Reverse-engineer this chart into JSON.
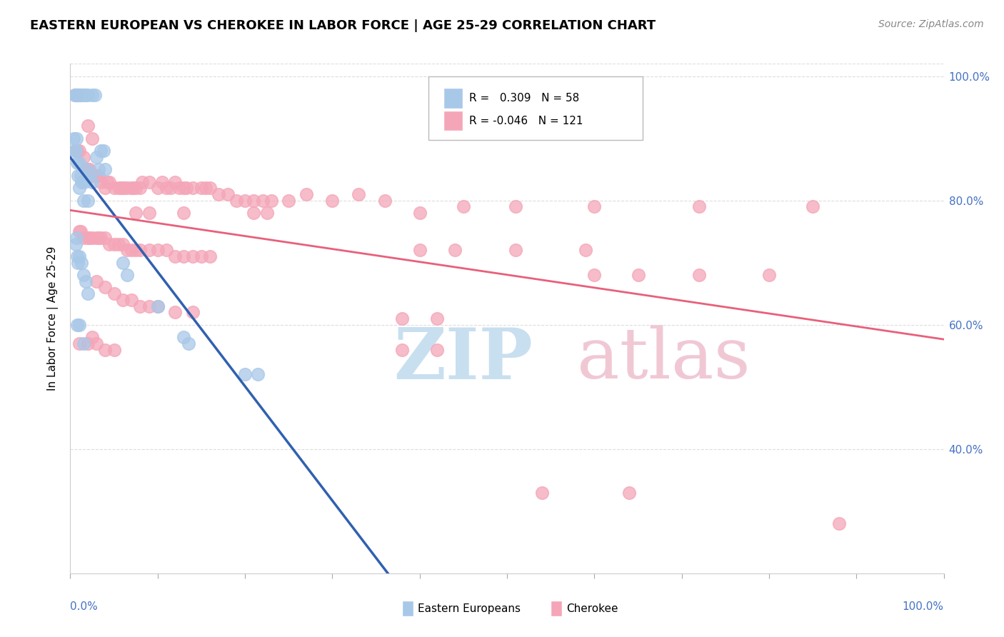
{
  "title": "EASTERN EUROPEAN VS CHEROKEE IN LABOR FORCE | AGE 25-29 CORRELATION CHART",
  "source": "Source: ZipAtlas.com",
  "ylabel": "In Labor Force | Age 25-29",
  "legend_ee": "Eastern Europeans",
  "legend_ch": "Cherokee",
  "r_ee": 0.309,
  "n_ee": 58,
  "r_ch": -0.046,
  "n_ch": 121,
  "ee_color": "#a8c8e8",
  "ch_color": "#f4a6b8",
  "ee_line_color": "#3060b0",
  "ch_line_color": "#e8607a",
  "ee_scatter": [
    [
      0.005,
      0.97
    ],
    [
      0.005,
      0.97
    ],
    [
      0.007,
      0.97
    ],
    [
      0.008,
      0.97
    ],
    [
      0.009,
      0.97
    ],
    [
      0.01,
      0.97
    ],
    [
      0.01,
      0.97
    ],
    [
      0.011,
      0.97
    ],
    [
      0.012,
      0.97
    ],
    [
      0.013,
      0.97
    ],
    [
      0.015,
      0.97
    ],
    [
      0.017,
      0.97
    ],
    [
      0.018,
      0.97
    ],
    [
      0.02,
      0.97
    ],
    [
      0.025,
      0.97
    ],
    [
      0.028,
      0.97
    ],
    [
      0.004,
      0.9
    ],
    [
      0.005,
      0.88
    ],
    [
      0.006,
      0.88
    ],
    [
      0.007,
      0.9
    ],
    [
      0.008,
      0.86
    ],
    [
      0.009,
      0.84
    ],
    [
      0.01,
      0.86
    ],
    [
      0.01,
      0.82
    ],
    [
      0.012,
      0.84
    ],
    [
      0.013,
      0.83
    ],
    [
      0.015,
      0.8
    ],
    [
      0.016,
      0.83
    ],
    [
      0.018,
      0.85
    ],
    [
      0.02,
      0.8
    ],
    [
      0.022,
      0.84
    ],
    [
      0.025,
      0.83
    ],
    [
      0.03,
      0.87
    ],
    [
      0.032,
      0.85
    ],
    [
      0.035,
      0.88
    ],
    [
      0.038,
      0.88
    ],
    [
      0.04,
      0.85
    ],
    [
      0.006,
      0.73
    ],
    [
      0.007,
      0.74
    ],
    [
      0.008,
      0.71
    ],
    [
      0.009,
      0.7
    ],
    [
      0.01,
      0.71
    ],
    [
      0.013,
      0.7
    ],
    [
      0.015,
      0.68
    ],
    [
      0.018,
      0.67
    ],
    [
      0.02,
      0.65
    ],
    [
      0.008,
      0.6
    ],
    [
      0.01,
      0.6
    ],
    [
      0.015,
      0.57
    ],
    [
      0.06,
      0.7
    ],
    [
      0.065,
      0.68
    ],
    [
      0.1,
      0.63
    ],
    [
      0.13,
      0.58
    ],
    [
      0.135,
      0.57
    ],
    [
      0.2,
      0.52
    ],
    [
      0.215,
      0.52
    ]
  ],
  "ch_scatter": [
    [
      0.005,
      0.97
    ],
    [
      0.008,
      0.97
    ],
    [
      0.02,
      0.92
    ],
    [
      0.025,
      0.9
    ],
    [
      0.005,
      0.88
    ],
    [
      0.008,
      0.88
    ],
    [
      0.01,
      0.88
    ],
    [
      0.015,
      0.87
    ],
    [
      0.018,
      0.85
    ],
    [
      0.02,
      0.85
    ],
    [
      0.022,
      0.85
    ],
    [
      0.025,
      0.84
    ],
    [
      0.028,
      0.84
    ],
    [
      0.03,
      0.84
    ],
    [
      0.032,
      0.84
    ],
    [
      0.035,
      0.83
    ],
    [
      0.04,
      0.82
    ],
    [
      0.042,
      0.83
    ],
    [
      0.045,
      0.83
    ],
    [
      0.05,
      0.82
    ],
    [
      0.055,
      0.82
    ],
    [
      0.058,
      0.82
    ],
    [
      0.06,
      0.82
    ],
    [
      0.062,
      0.82
    ],
    [
      0.065,
      0.82
    ],
    [
      0.07,
      0.82
    ],
    [
      0.072,
      0.82
    ],
    [
      0.075,
      0.82
    ],
    [
      0.08,
      0.82
    ],
    [
      0.082,
      0.83
    ],
    [
      0.09,
      0.83
    ],
    [
      0.1,
      0.82
    ],
    [
      0.105,
      0.83
    ],
    [
      0.11,
      0.82
    ],
    [
      0.115,
      0.82
    ],
    [
      0.12,
      0.83
    ],
    [
      0.125,
      0.82
    ],
    [
      0.13,
      0.82
    ],
    [
      0.133,
      0.82
    ],
    [
      0.14,
      0.82
    ],
    [
      0.15,
      0.82
    ],
    [
      0.155,
      0.82
    ],
    [
      0.16,
      0.82
    ],
    [
      0.17,
      0.81
    ],
    [
      0.18,
      0.81
    ],
    [
      0.19,
      0.8
    ],
    [
      0.2,
      0.8
    ],
    [
      0.21,
      0.8
    ],
    [
      0.22,
      0.8
    ],
    [
      0.23,
      0.8
    ],
    [
      0.25,
      0.8
    ],
    [
      0.27,
      0.81
    ],
    [
      0.3,
      0.8
    ],
    [
      0.33,
      0.81
    ],
    [
      0.36,
      0.8
    ],
    [
      0.01,
      0.75
    ],
    [
      0.012,
      0.75
    ],
    [
      0.015,
      0.74
    ],
    [
      0.02,
      0.74
    ],
    [
      0.022,
      0.74
    ],
    [
      0.025,
      0.74
    ],
    [
      0.03,
      0.74
    ],
    [
      0.032,
      0.74
    ],
    [
      0.035,
      0.74
    ],
    [
      0.04,
      0.74
    ],
    [
      0.045,
      0.73
    ],
    [
      0.05,
      0.73
    ],
    [
      0.055,
      0.73
    ],
    [
      0.06,
      0.73
    ],
    [
      0.065,
      0.72
    ],
    [
      0.07,
      0.72
    ],
    [
      0.075,
      0.72
    ],
    [
      0.08,
      0.72
    ],
    [
      0.09,
      0.72
    ],
    [
      0.1,
      0.72
    ],
    [
      0.11,
      0.72
    ],
    [
      0.12,
      0.71
    ],
    [
      0.13,
      0.71
    ],
    [
      0.14,
      0.71
    ],
    [
      0.15,
      0.71
    ],
    [
      0.16,
      0.71
    ],
    [
      0.075,
      0.78
    ],
    [
      0.09,
      0.78
    ],
    [
      0.13,
      0.78
    ],
    [
      0.21,
      0.78
    ],
    [
      0.225,
      0.78
    ],
    [
      0.4,
      0.78
    ],
    [
      0.45,
      0.79
    ],
    [
      0.51,
      0.79
    ],
    [
      0.6,
      0.79
    ],
    [
      0.72,
      0.79
    ],
    [
      0.85,
      0.79
    ],
    [
      0.4,
      0.72
    ],
    [
      0.44,
      0.72
    ],
    [
      0.51,
      0.72
    ],
    [
      0.59,
      0.72
    ],
    [
      0.6,
      0.68
    ],
    [
      0.65,
      0.68
    ],
    [
      0.72,
      0.68
    ],
    [
      0.8,
      0.68
    ],
    [
      0.03,
      0.67
    ],
    [
      0.04,
      0.66
    ],
    [
      0.05,
      0.65
    ],
    [
      0.06,
      0.64
    ],
    [
      0.07,
      0.64
    ],
    [
      0.08,
      0.63
    ],
    [
      0.09,
      0.63
    ],
    [
      0.1,
      0.63
    ],
    [
      0.12,
      0.62
    ],
    [
      0.14,
      0.62
    ],
    [
      0.38,
      0.61
    ],
    [
      0.42,
      0.61
    ],
    [
      0.01,
      0.57
    ],
    [
      0.02,
      0.57
    ],
    [
      0.025,
      0.58
    ],
    [
      0.03,
      0.57
    ],
    [
      0.04,
      0.56
    ],
    [
      0.05,
      0.56
    ],
    [
      0.38,
      0.56
    ],
    [
      0.42,
      0.56
    ],
    [
      0.54,
      0.33
    ],
    [
      0.64,
      0.33
    ],
    [
      0.88,
      0.28
    ]
  ],
  "xlim": [
    0.0,
    1.0
  ],
  "ylim": [
    0.2,
    1.02
  ],
  "yticks": [
    0.4,
    0.6,
    0.8,
    1.0
  ],
  "ytick_labels": [
    "40.0%",
    "60.0%",
    "80.0%",
    "100.0%"
  ],
  "grid_color": "#dddddd",
  "background_color": "#ffffff",
  "watermark_zip_color": "#c8dff0",
  "watermark_atlas_color": "#f0c8d4"
}
